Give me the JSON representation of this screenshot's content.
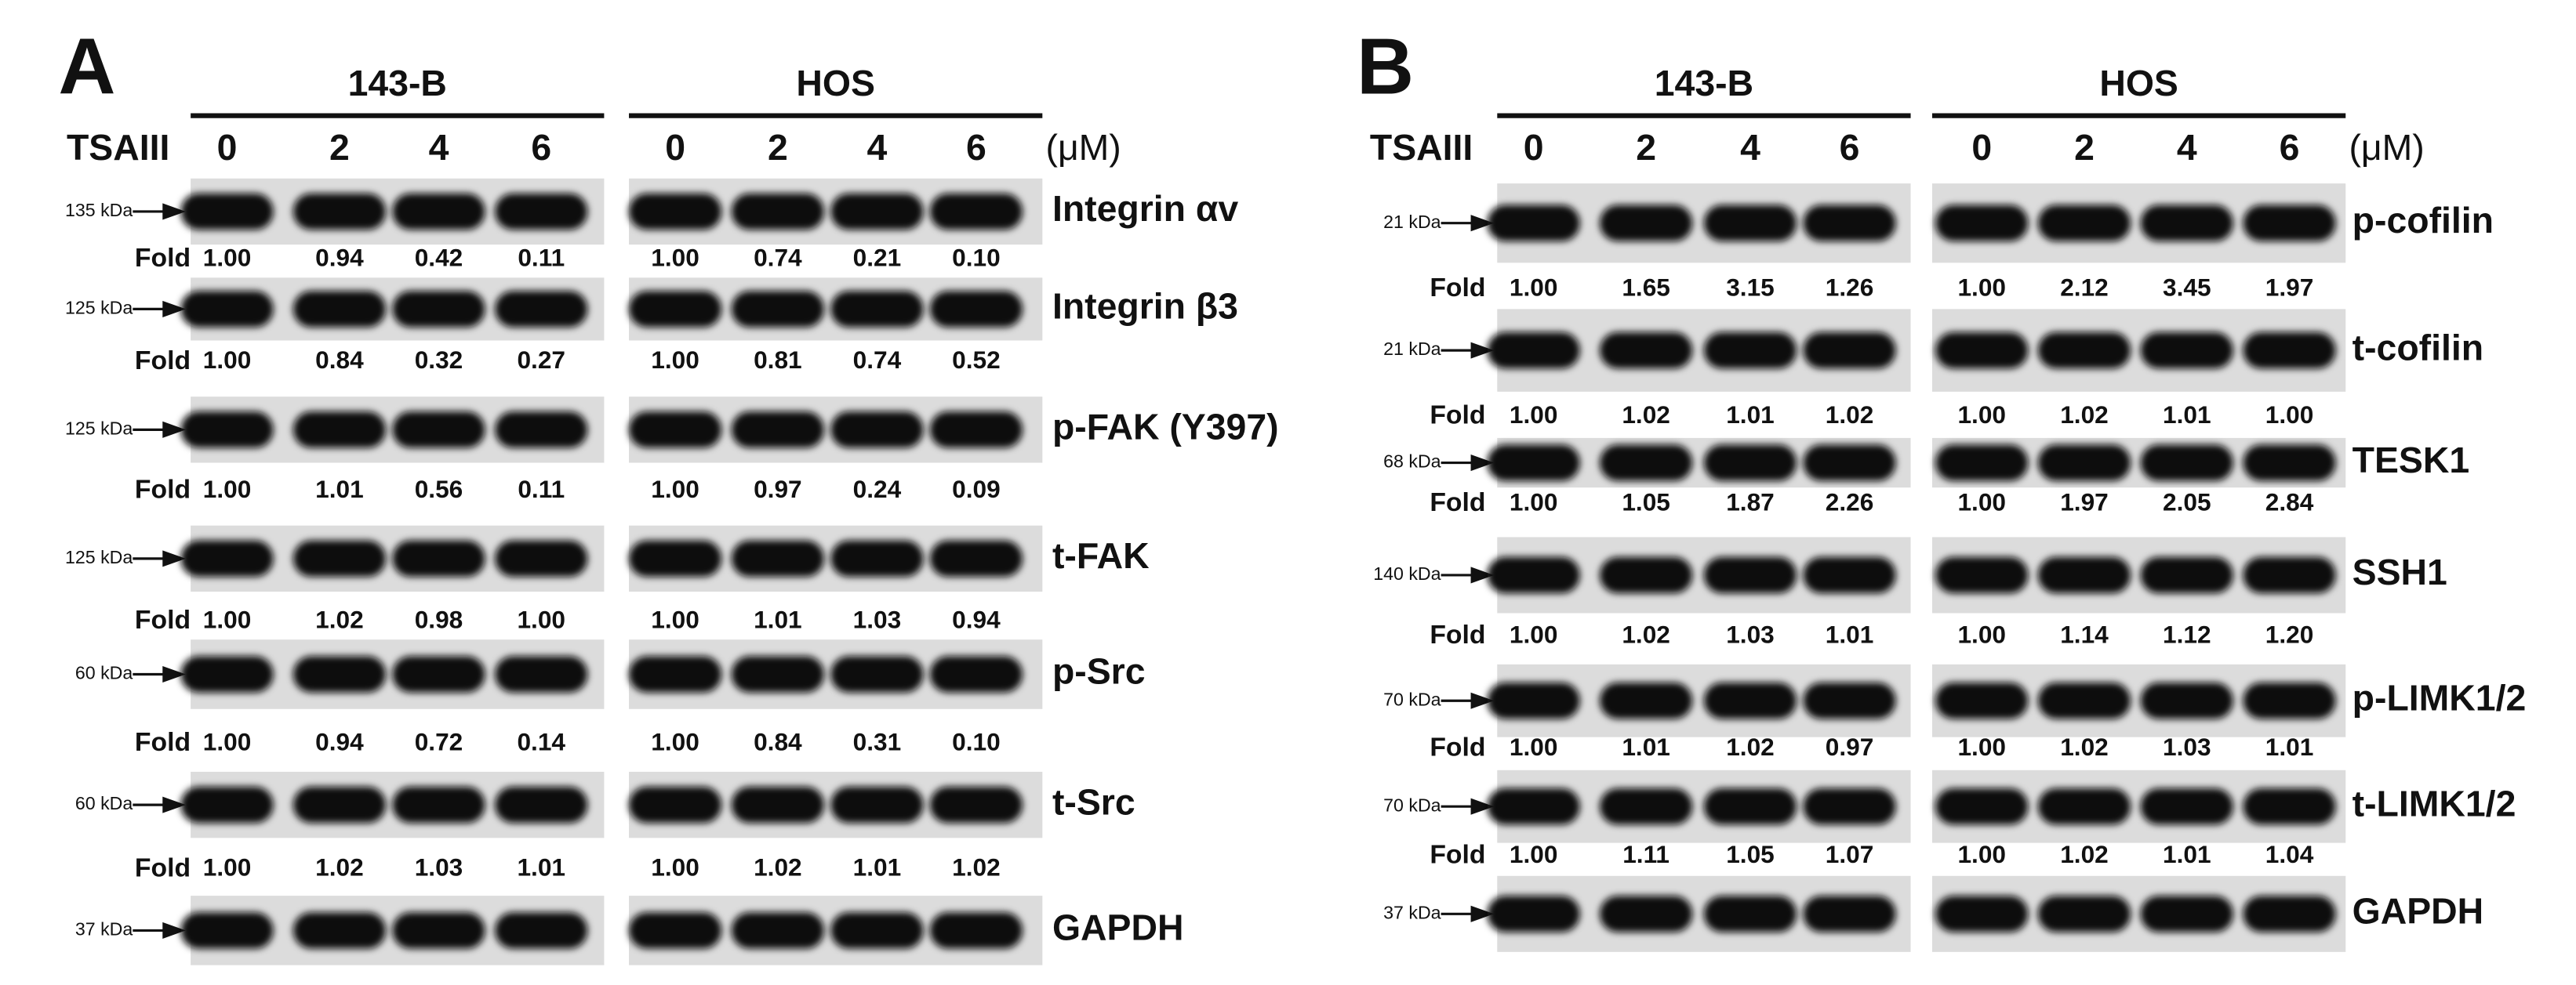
{
  "panels": [
    {
      "letter": "A",
      "treatment": "TSAIII",
      "unit": "(μM)",
      "groups": [
        "143-B",
        "HOS"
      ],
      "doses": [
        "0",
        "2",
        "4",
        "6"
      ],
      "fold_label": "Fold",
      "rows": [
        {
          "marker": "135 kDa",
          "protein": "Integrin αv",
          "fold": [
            [
              "1.00",
              "0.94",
              "0.42",
              "0.11"
            ],
            [
              "1.00",
              "0.74",
              "0.21",
              "0.10"
            ]
          ]
        },
        {
          "marker": "125 kDa",
          "protein": "Integrin β3",
          "fold": [
            [
              "1.00",
              "0.84",
              "0.32",
              "0.27"
            ],
            [
              "1.00",
              "0.81",
              "0.74",
              "0.52"
            ]
          ]
        },
        {
          "marker": "125 kDa",
          "protein": "p-FAK (Y397)",
          "fold": [
            [
              "1.00",
              "1.01",
              "0.56",
              "0.11"
            ],
            [
              "1.00",
              "0.97",
              "0.24",
              "0.09"
            ]
          ]
        },
        {
          "marker": "125 kDa",
          "protein": "t-FAK",
          "fold": [
            [
              "1.00",
              "1.02",
              "0.98",
              "1.00"
            ],
            [
              "1.00",
              "1.01",
              "1.03",
              "0.94"
            ]
          ]
        },
        {
          "marker": "60 kDa",
          "protein": "p-Src",
          "fold": [
            [
              "1.00",
              "0.94",
              "0.72",
              "0.14"
            ],
            [
              "1.00",
              "0.84",
              "0.31",
              "0.10"
            ]
          ]
        },
        {
          "marker": "60 kDa",
          "protein": "t-Src",
          "fold": [
            [
              "1.00",
              "1.02",
              "1.03",
              "1.01"
            ],
            [
              "1.00",
              "1.02",
              "1.01",
              "1.02"
            ]
          ]
        },
        {
          "marker": "37 kDa",
          "protein": "GAPDH"
        }
      ]
    },
    {
      "letter": "B",
      "treatment": "TSAIII",
      "unit": "(μM)",
      "groups": [
        "143-B",
        "HOS"
      ],
      "doses": [
        "0",
        "2",
        "4",
        "6"
      ],
      "fold_label": "Fold",
      "rows": [
        {
          "marker": "21 kDa",
          "protein": "p-cofilin",
          "fold": [
            [
              "1.00",
              "1.65",
              "3.15",
              "1.26"
            ],
            [
              "1.00",
              "2.12",
              "3.45",
              "1.97"
            ]
          ]
        },
        {
          "marker": "21 kDa",
          "protein": "t-cofilin",
          "fold": [
            [
              "1.00",
              "1.02",
              "1.01",
              "1.02"
            ],
            [
              "1.00",
              "1.02",
              "1.01",
              "1.00"
            ]
          ]
        },
        {
          "marker": "68 kDa",
          "protein": "TESK1",
          "fold": [
            [
              "1.00",
              "1.05",
              "1.87",
              "2.26"
            ],
            [
              "1.00",
              "1.97",
              "2.05",
              "2.84"
            ]
          ]
        },
        {
          "marker": "140 kDa",
          "protein": "SSH1",
          "fold": [
            [
              "1.00",
              "1.02",
              "1.03",
              "1.01"
            ],
            [
              "1.00",
              "1.14",
              "1.12",
              "1.20"
            ]
          ]
        },
        {
          "marker": "70 kDa",
          "protein": "p-LIMK1/2",
          "fold": [
            [
              "1.00",
              "1.01",
              "1.02",
              "0.97"
            ],
            [
              "1.00",
              "1.02",
              "1.03",
              "1.01"
            ]
          ]
        },
        {
          "marker": "70 kDa",
          "protein": "t-LIMK1/2",
          "fold": [
            [
              "1.00",
              "1.11",
              "1.05",
              "1.07"
            ],
            [
              "1.00",
              "1.02",
              "1.01",
              "1.04"
            ]
          ]
        },
        {
          "marker": "37 kDa",
          "protein": "GAPDH"
        }
      ]
    }
  ]
}
